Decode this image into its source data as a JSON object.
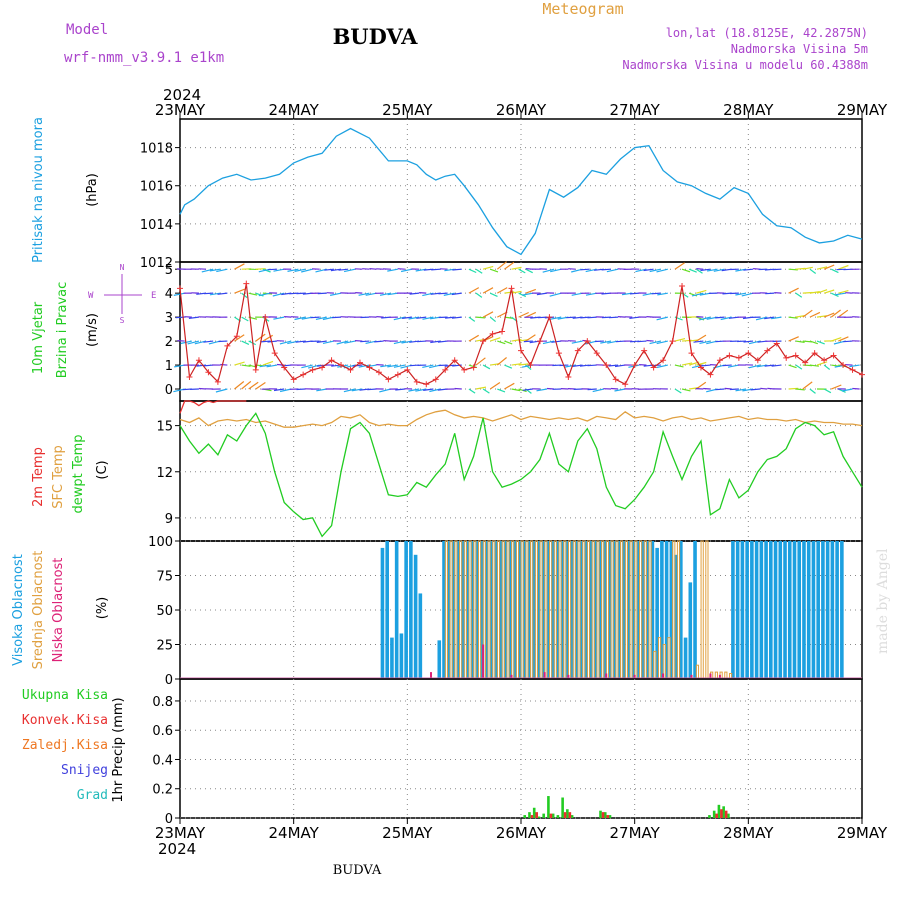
{
  "header": {
    "model_label": "Model",
    "model_name": "wrf-nmm_v3.9.1 e1km",
    "title": "BUDVA",
    "subtitle": "Meteogram",
    "coords": "lon,lat (18.8125E, 42.2875N)",
    "elevation": "Nadmorska Visina 5m",
    "model_elevation": "Nadmorska Visina u modelu 60.4388m",
    "year_top": "2024",
    "year_bottom": "2024",
    "footer": "BUDVA",
    "watermark": "made by Angel"
  },
  "axis_dates": [
    "23MAY",
    "24MAY",
    "25MAY",
    "26MAY",
    "27MAY",
    "28MAY",
    "29MAY"
  ],
  "colors": {
    "pressure": "#1ca0e0",
    "temp2m": "#e83030",
    "sfctemp": "#e0a040",
    "dewpt": "#22cc22",
    "high_cloud": "#1ca0e0",
    "mid_cloud": "#e0a040",
    "low_cloud": "#dd2277",
    "total_precip": "#22cc22",
    "conv_precip": "#e83030",
    "freezing": "#ee7722",
    "snow": "#4040dd",
    "hail": "#22bbbb",
    "wind_label": "#22cc22",
    "wind_dir": "#aa44cc",
    "header_purple": "#aa44cc",
    "header_orange": "#e0a040"
  },
  "labels": {
    "pressure": {
      "name": "Pritisak na nivou mora",
      "unit": "(hPa)"
    },
    "wind": {
      "name1": "10m Vjetar",
      "name2": "Brzina i Pravac",
      "unit": "(m/s)",
      "dir_top": "N",
      "dir_left": "W",
      "dir_right": "E",
      "dir_bottom": "S"
    },
    "temp": {
      "t2m": "2m Temp",
      "sfc": "SFC Temp",
      "dew": "dewpt Temp",
      "unit": "(C)"
    },
    "cloud": {
      "high": "Visoka Oblacnost",
      "mid": "Srednja Oblacnost",
      "low": "Niska Oblacnost",
      "unit": "(%)"
    },
    "precip": {
      "unit": "1hr Precip (mm)",
      "total": "Ukupna Kisa",
      "conv": "Konvek.Kisa",
      "freezing": "Zaledj.Kisa",
      "snow": "Snijeg",
      "hail": "Grad"
    }
  },
  "chart_data": [
    {
      "type": "line",
      "name": "pressure",
      "x_hours": [
        0,
        1,
        3,
        6,
        9,
        12,
        15,
        18,
        21,
        24,
        27,
        30,
        33,
        36,
        40,
        44,
        48,
        50,
        52,
        54,
        56,
        58,
        60,
        63,
        66,
        69,
        72,
        75,
        78,
        81,
        84,
        87,
        90,
        93,
        96,
        99,
        102,
        105,
        108,
        111,
        114,
        117,
        120,
        123,
        126,
        129,
        132,
        135,
        138,
        141,
        144
      ],
      "values": [
        1014.5,
        1015.0,
        1015.3,
        1016.0,
        1016.4,
        1016.6,
        1016.3,
        1016.4,
        1016.6,
        1017.2,
        1017.5,
        1017.7,
        1018.6,
        1019.0,
        1018.5,
        1017.3,
        1017.3,
        1017.1,
        1016.6,
        1016.3,
        1016.5,
        1016.6,
        1016.0,
        1015.0,
        1013.8,
        1012.8,
        1012.4,
        1013.5,
        1015.8,
        1015.4,
        1015.9,
        1016.8,
        1016.6,
        1017.4,
        1018.0,
        1018.1,
        1016.8,
        1016.2,
        1016.0,
        1015.6,
        1015.3,
        1015.9,
        1015.6,
        1014.5,
        1013.9,
        1013.8,
        1013.3,
        1013.0,
        1013.1,
        1013.4,
        1013.2
      ],
      "ylim": [
        1012,
        1019.5
      ],
      "yticks": [
        1012,
        1014,
        1016,
        1018
      ],
      "grid": true
    },
    {
      "type": "line",
      "name": "wind-speed",
      "x_hours": [
        0,
        2,
        4,
        6,
        8,
        10,
        12,
        14,
        16,
        18,
        20,
        22,
        24,
        26,
        28,
        30,
        32,
        34,
        36,
        38,
        40,
        42,
        44,
        46,
        48,
        50,
        52,
        54,
        56,
        58,
        60,
        62,
        64,
        66,
        68,
        70,
        72,
        74,
        76,
        78,
        80,
        82,
        84,
        86,
        88,
        90,
        92,
        94,
        96,
        98,
        100,
        102,
        104,
        106,
        108,
        110,
        112,
        114,
        116,
        118,
        120,
        122,
        124,
        126,
        128,
        130,
        132,
        134,
        136,
        138,
        140,
        142,
        144
      ],
      "values": [
        4.2,
        0.5,
        1.2,
        0.7,
        0.3,
        1.8,
        2.2,
        4.4,
        0.8,
        3.0,
        1.5,
        0.9,
        0.4,
        0.6,
        0.8,
        0.9,
        1.2,
        1.0,
        0.8,
        1.1,
        0.9,
        0.7,
        0.4,
        0.6,
        0.8,
        0.3,
        0.2,
        0.4,
        0.8,
        1.2,
        0.8,
        0.9,
        2.0,
        2.3,
        2.4,
        4.2,
        1.6,
        1.0,
        2.0,
        3.0,
        1.5,
        0.5,
        1.6,
        2.0,
        1.5,
        1.0,
        0.4,
        0.2,
        1.0,
        1.6,
        0.9,
        1.2,
        2.0,
        4.3,
        1.5,
        0.9,
        0.6,
        1.2,
        1.4,
        1.3,
        1.5,
        1.2,
        1.6,
        1.9,
        1.3,
        1.4,
        1.1,
        1.5,
        1.2,
        1.4,
        1.0,
        0.8,
        0.6
      ],
      "ylim": [
        -0.5,
        5.3
      ],
      "yticks": [
        0,
        1,
        2,
        3,
        4,
        5
      ],
      "grid": true
    },
    {
      "type": "line",
      "name": "temperature",
      "series": [
        {
          "name": "2m Temp",
          "x_hours": [
            0,
            1,
            2,
            3,
            4,
            5,
            6,
            7,
            8,
            9,
            10,
            11,
            12,
            13,
            14
          ],
          "values": [
            15.8,
            16.6,
            16.8,
            16.5,
            16.3,
            16.5,
            16.7,
            16.5,
            16.6,
            16.8,
            17.0,
            17.1,
            17.2,
            17.4,
            17.6
          ]
        },
        {
          "name": "SFC Temp",
          "x_hours": [
            0,
            2,
            4,
            6,
            8,
            10,
            12,
            14,
            16,
            18,
            20,
            22,
            24,
            26,
            28,
            30,
            32,
            34,
            36,
            38,
            40,
            42,
            44,
            46,
            48,
            50,
            52,
            54,
            56,
            58,
            60,
            62,
            64,
            66,
            68,
            70,
            72,
            74,
            76,
            78,
            80,
            82,
            84,
            86,
            88,
            90,
            92,
            94,
            96,
            98,
            100,
            102,
            104,
            106,
            108,
            110,
            112,
            114,
            116,
            118,
            120,
            122,
            124,
            126,
            128,
            130,
            132,
            134,
            136,
            138,
            140,
            142,
            144
          ],
          "values": [
            15.4,
            15.2,
            15.5,
            15.0,
            15.3,
            15.4,
            15.3,
            15.4,
            15.2,
            15.3,
            15.1,
            14.9,
            14.9,
            15.0,
            15.1,
            15.0,
            15.2,
            15.6,
            15.5,
            15.7,
            15.2,
            15.0,
            15.1,
            15.0,
            15.0,
            15.4,
            15.7,
            15.9,
            16.0,
            15.7,
            15.5,
            15.6,
            15.5,
            15.3,
            15.5,
            15.7,
            15.4,
            15.6,
            15.5,
            15.4,
            15.5,
            15.4,
            15.5,
            15.3,
            15.6,
            15.5,
            15.4,
            15.9,
            15.5,
            15.6,
            15.5,
            15.3,
            15.5,
            15.6,
            15.4,
            15.5,
            15.3,
            15.4,
            15.5,
            15.6,
            15.4,
            15.5,
            15.4,
            15.4,
            15.3,
            15.4,
            15.2,
            15.3,
            15.2,
            15.2,
            15.1,
            15.1,
            15.0
          ]
        },
        {
          "name": "dewpt Temp",
          "x_hours": [
            0,
            2,
            4,
            6,
            8,
            10,
            12,
            14,
            16,
            18,
            20,
            22,
            24,
            26,
            28,
            30,
            32,
            34,
            36,
            38,
            40,
            42,
            44,
            46,
            48,
            50,
            52,
            54,
            56,
            58,
            60,
            62,
            64,
            66,
            68,
            70,
            72,
            74,
            76,
            78,
            80,
            82,
            84,
            86,
            88,
            90,
            92,
            94,
            96,
            98,
            100,
            102,
            104,
            106,
            108,
            110,
            112,
            114,
            116,
            118,
            120,
            122,
            124,
            126,
            128,
            130,
            132,
            134,
            136,
            138,
            140,
            142,
            144
          ],
          "values": [
            15.0,
            14.0,
            13.2,
            13.8,
            13.1,
            14.4,
            14.0,
            15.0,
            15.8,
            14.5,
            12.0,
            10.0,
            9.4,
            8.9,
            9.0,
            7.8,
            8.5,
            12.0,
            14.8,
            15.2,
            14.5,
            12.5,
            10.5,
            10.4,
            10.5,
            11.3,
            11.0,
            11.8,
            12.5,
            14.5,
            11.5,
            13.0,
            15.5,
            12.0,
            11.0,
            11.2,
            11.5,
            12.0,
            12.8,
            14.5,
            12.5,
            12.0,
            14.0,
            14.8,
            13.5,
            11.0,
            9.8,
            9.6,
            10.2,
            11.0,
            12.0,
            14.6,
            13.0,
            11.5,
            13.0,
            14.0,
            9.2,
            9.6,
            11.5,
            10.3,
            10.8,
            12.0,
            12.8,
            13.0,
            13.5,
            14.8,
            15.2,
            15.0,
            14.4,
            14.6,
            13.0,
            12.0,
            11.0
          ]
        }
      ],
      "ylim": [
        7.5,
        16.6
      ],
      "yticks": [
        9,
        12,
        15
      ],
      "grid": true
    },
    {
      "type": "bar",
      "name": "cloudiness",
      "series": [
        {
          "name": "Visoka Oblacnost",
          "x_hours": [
            43,
            44,
            45,
            46,
            47,
            48,
            49,
            50,
            51,
            55,
            56,
            57,
            58,
            59,
            60,
            61,
            62,
            63,
            64,
            65,
            66,
            67,
            68,
            69,
            70,
            71,
            72,
            73,
            74,
            75,
            76,
            77,
            78,
            79,
            80,
            81,
            82,
            83,
            84,
            85,
            86,
            87,
            88,
            89,
            90,
            91,
            92,
            93,
            94,
            95,
            96,
            97,
            98,
            99,
            100,
            101,
            102,
            103,
            104,
            105,
            106,
            107,
            108,
            109,
            117,
            118,
            119,
            120,
            121,
            122,
            123,
            124,
            125,
            126,
            127,
            128,
            129,
            130,
            131,
            132,
            133,
            134,
            135,
            136,
            137,
            138,
            139,
            140
          ],
          "values": [
            95,
            100,
            30,
            100,
            33,
            100,
            100,
            90,
            62,
            28,
            100,
            100,
            100,
            100,
            100,
            100,
            100,
            100,
            100,
            100,
            100,
            100,
            100,
            100,
            100,
            100,
            100,
            100,
            100,
            100,
            100,
            100,
            100,
            100,
            100,
            100,
            100,
            100,
            100,
            100,
            100,
            100,
            100,
            100,
            100,
            100,
            100,
            100,
            100,
            100,
            100,
            100,
            100,
            100,
            100,
            95,
            100,
            100,
            100,
            90,
            100,
            30,
            70,
            100,
            100,
            100,
            100,
            100,
            100,
            100,
            100,
            100,
            100,
            100,
            100,
            100,
            100,
            100,
            100,
            100,
            100,
            100,
            100,
            100,
            100,
            100,
            100,
            100
          ]
        },
        {
          "name": "Srednja Oblacnost",
          "x_hours": [
            56,
            57,
            58,
            59,
            60,
            61,
            62,
            63,
            64,
            65,
            66,
            67,
            68,
            69,
            70,
            71,
            72,
            73,
            74,
            75,
            76,
            77,
            78,
            79,
            80,
            81,
            82,
            83,
            84,
            85,
            86,
            87,
            88,
            89,
            90,
            91,
            92,
            93,
            94,
            95,
            96,
            97,
            98,
            99,
            100,
            101,
            102,
            103,
            104,
            105,
            109,
            110,
            111,
            112,
            113,
            114,
            115,
            116
          ],
          "values": [
            100,
            100,
            100,
            100,
            100,
            100,
            100,
            100,
            100,
            100,
            100,
            100,
            100,
            100,
            100,
            100,
            100,
            100,
            100,
            100,
            100,
            100,
            100,
            100,
            100,
            100,
            100,
            100,
            100,
            100,
            100,
            100,
            100,
            100,
            100,
            100,
            100,
            100,
            100,
            100,
            100,
            100,
            100,
            100,
            20,
            30,
            25,
            30,
            100,
            100,
            10,
            100,
            100,
            5,
            5,
            5,
            5,
            4
          ]
        },
        {
          "name": "Niska Oblacnost",
          "x_hours": [
            53,
            64,
            70,
            77,
            82,
            90,
            96,
            102,
            108,
            112,
            114
          ],
          "values": [
            5,
            25,
            3,
            5,
            3,
            4,
            3,
            4,
            3,
            4,
            3
          ]
        }
      ],
      "ylim": [
        0,
        100
      ],
      "yticks": [
        0,
        25,
        50,
        75,
        100
      ],
      "grid": true
    },
    {
      "type": "bar",
      "name": "precipitation",
      "series": [
        {
          "name": "Ukupna Kisa",
          "x_hours": [
            73,
            74,
            75,
            76,
            77,
            78,
            79,
            80,
            81,
            82,
            83,
            89,
            90,
            91,
            112,
            113,
            114,
            115,
            116
          ],
          "values": [
            0.02,
            0.04,
            0.07,
            0.01,
            0.03,
            0.15,
            0.03,
            0.02,
            0.14,
            0.06,
            0.02,
            0.05,
            0.04,
            0.02,
            0.02,
            0.05,
            0.09,
            0.08,
            0.03
          ]
        },
        {
          "name": "Konvek.Kisa",
          "x_hours": [
            74,
            75,
            78,
            81,
            82,
            89,
            90,
            113,
            114,
            115
          ],
          "values": [
            0.02,
            0.04,
            0.03,
            0.04,
            0.04,
            0.04,
            0.02,
            0.03,
            0.06,
            0.05
          ]
        }
      ],
      "ylim": [
        0,
        0.95
      ],
      "yticks": [
        0,
        0.2,
        0.4,
        0.6,
        0.8
      ],
      "grid": true
    }
  ]
}
